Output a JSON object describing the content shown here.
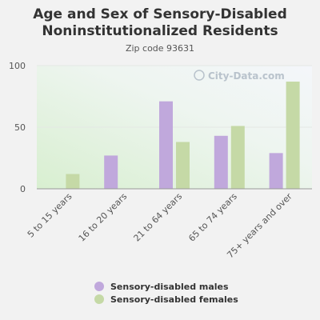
{
  "chart_data": {
    "type": "bar",
    "title_line1": "Age and Sex of Sensory-Disabled",
    "title_line2": "Noninstitutionalized Residents",
    "subtitle": "Zip code 93631",
    "watermark": "City-Data.com",
    "categories": [
      "5 to 15 years",
      "16 to 20 years",
      "21 to 64 years",
      "65 to 74 years",
      "75+ years and over"
    ],
    "series": [
      {
        "name": "Sensory-disabled males",
        "color": "#c0a8dc",
        "values": [
          0,
          27,
          71,
          43,
          29
        ]
      },
      {
        "name": "Sensory-disabled females",
        "color": "#c5d9a6",
        "values": [
          12,
          0,
          38,
          51,
          87
        ]
      }
    ],
    "ylim": [
      0,
      100
    ],
    "yticks": [
      0,
      50,
      100
    ],
    "grid": true,
    "legend": "bottom"
  }
}
